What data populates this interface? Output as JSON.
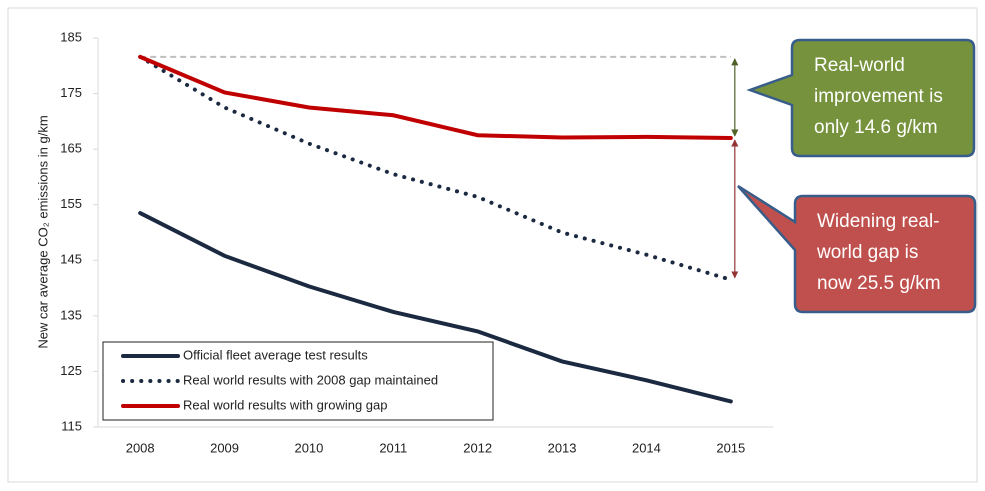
{
  "chart_data": {
    "type": "line",
    "y_label": "New car average CO₂ emissions in g/km",
    "categories": [
      "2008",
      "2009",
      "2010",
      "2011",
      "2012",
      "2013",
      "2014",
      "2015"
    ],
    "series": [
      {
        "name": "Official fleet average test results",
        "color": "#1b2a41",
        "style": "solid",
        "values": [
          153.5,
          145.8,
          140.3,
          135.7,
          132.2,
          126.8,
          123.4,
          119.6
        ]
      },
      {
        "name": "Real world results with 2008 gap maintained",
        "color": "#1b2a41",
        "style": "dotted",
        "values": [
          181.6,
          172.5,
          166.0,
          160.5,
          156.4,
          150.0,
          146.0,
          141.5
        ]
      },
      {
        "name": "Real world results with growing gap",
        "color": "#c00000",
        "style": "solid",
        "values": [
          181.6,
          175.2,
          172.5,
          171.1,
          167.5,
          167.1,
          167.2,
          167.0
        ]
      }
    ],
    "ylim": [
      115,
      185
    ],
    "yticks": [
      115,
      125,
      135,
      145,
      155,
      165,
      175,
      185
    ],
    "grid": false,
    "annotations": [
      {
        "lines": [
          "Real-world",
          "improvement is",
          "only 14.6 g/km"
        ],
        "color": "#76923c"
      },
      {
        "lines": [
          "Widening real-",
          "world gap is",
          "now 25.5 g/km"
        ],
        "color": "#c0504d"
      }
    ]
  }
}
